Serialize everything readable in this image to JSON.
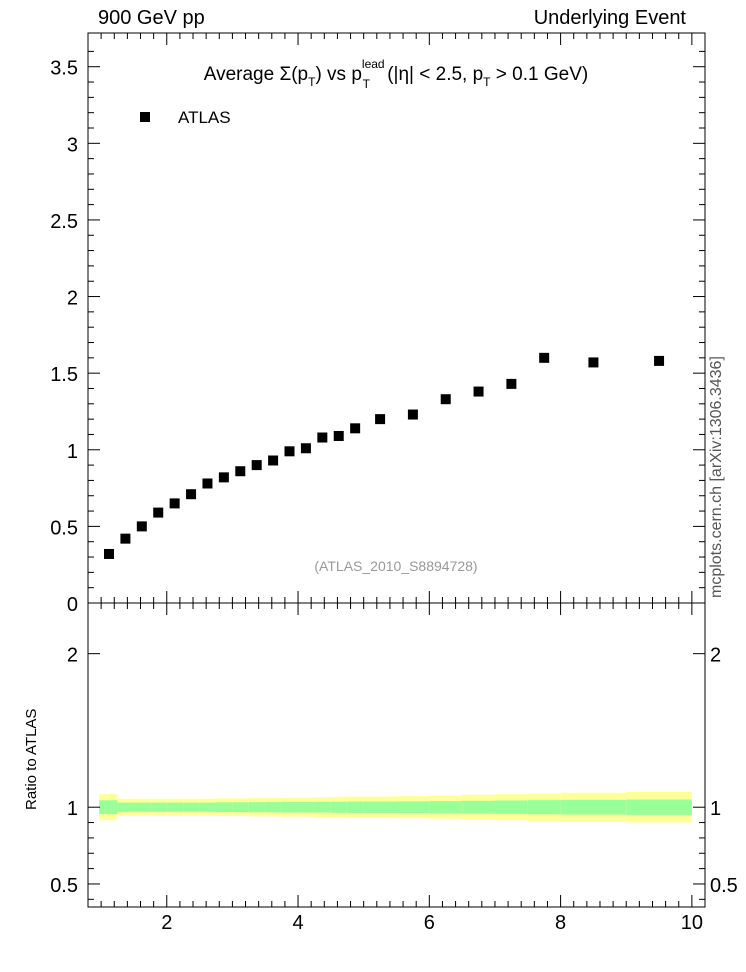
{
  "header": {
    "left": "900 GeV pp",
    "right": "Underlying Event",
    "side": "mcplots.cern.ch [arXiv:1306.3436]"
  },
  "chart_data": [
    {
      "type": "scatter",
      "title": {
        "prefix": "Average ",
        "sigma": "Σ(p",
        "sub1": "T",
        "mid": ") vs p",
        "sup": "lead",
        "sub2": "T",
        "tail": " (|η| < 2.5, p",
        "sub3": "T",
        "end": " > 0.1 GeV)"
      },
      "legend": "ATLAS",
      "legend_position": "top-left",
      "watermark": "(ATLAS_2010_S8894728)",
      "xlim": [
        0.8,
        10.2
      ],
      "ylim": [
        0,
        3.72
      ],
      "yticks": [
        0,
        0.5,
        1,
        1.5,
        2,
        2.5,
        3,
        3.5
      ],
      "ytick_labels": [
        "0",
        "0.5",
        "1",
        "1.5",
        "2",
        "2.5",
        "3",
        "3.5"
      ],
      "series": [
        {
          "name": "ATLAS",
          "x": [
            1.12,
            1.37,
            1.62,
            1.87,
            2.12,
            2.37,
            2.62,
            2.87,
            3.12,
            3.37,
            3.62,
            3.87,
            4.12,
            4.37,
            4.62,
            4.87,
            5.25,
            5.75,
            6.25,
            6.75,
            7.25,
            7.75,
            8.5,
            9.5
          ],
          "y": [
            0.32,
            0.42,
            0.5,
            0.59,
            0.65,
            0.71,
            0.78,
            0.82,
            0.86,
            0.9,
            0.93,
            0.99,
            1.01,
            1.08,
            1.09,
            1.14,
            1.2,
            1.23,
            1.33,
            1.38,
            1.43,
            1.6,
            1.57,
            1.58
          ]
        }
      ]
    },
    {
      "type": "area",
      "ylabel": "Ratio to ATLAS",
      "xlim": [
        0.8,
        10.2
      ],
      "ylim": [
        0.35,
        2.33
      ],
      "xticks": [
        2,
        4,
        6,
        8,
        10
      ],
      "xtick_labels": [
        "2",
        "4",
        "6",
        "8",
        "10"
      ],
      "yticks": [
        0.5,
        1,
        2
      ],
      "ytick_labels": [
        "0.5",
        "1",
        "2"
      ],
      "bands": {
        "x_edges": [
          1.0,
          1.25,
          1.5,
          1.75,
          2.0,
          2.25,
          2.5,
          2.75,
          3.0,
          3.25,
          3.5,
          3.75,
          4.0,
          4.25,
          4.5,
          4.75,
          5.0,
          5.5,
          6.0,
          6.5,
          7.0,
          7.5,
          8.0,
          9.0,
          10.0
        ],
        "yellow_half_width": [
          0.085,
          0.055,
          0.055,
          0.055,
          0.055,
          0.055,
          0.055,
          0.058,
          0.058,
          0.06,
          0.06,
          0.062,
          0.062,
          0.065,
          0.068,
          0.07,
          0.07,
          0.072,
          0.075,
          0.082,
          0.085,
          0.09,
          0.095,
          0.1
        ],
        "green_half_width": [
          0.045,
          0.03,
          0.03,
          0.03,
          0.03,
          0.03,
          0.03,
          0.032,
          0.032,
          0.033,
          0.033,
          0.034,
          0.034,
          0.035,
          0.036,
          0.037,
          0.037,
          0.038,
          0.04,
          0.042,
          0.044,
          0.046,
          0.048,
          0.05
        ],
        "yellow_color": "#ffff99",
        "green_color": "#99ff99"
      }
    }
  ]
}
